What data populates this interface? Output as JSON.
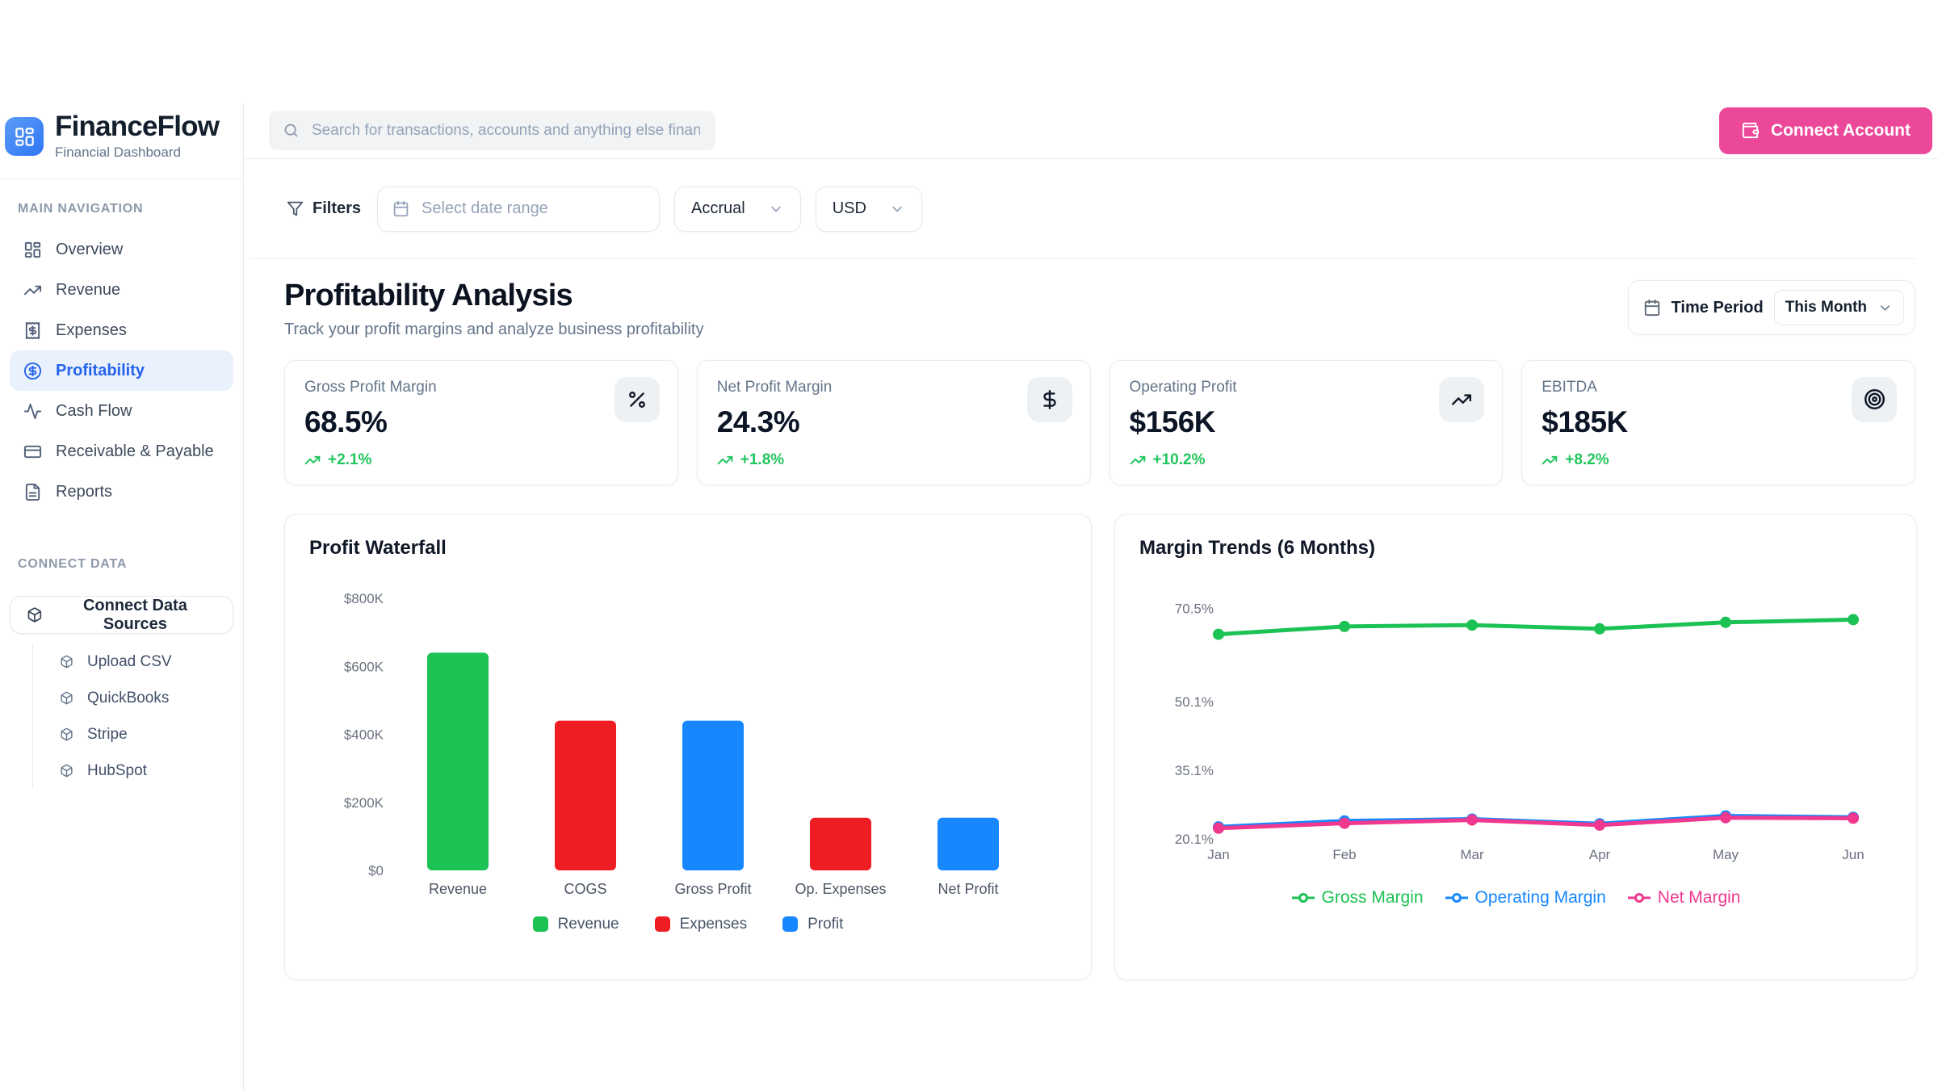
{
  "brand": {
    "name": "FinanceFlow",
    "tagline": "Financial Dashboard"
  },
  "sidebar": {
    "main_nav_label": "MAIN NAVIGATION",
    "items": [
      {
        "label": "Overview",
        "icon": "layout-dashboard-icon",
        "active": false
      },
      {
        "label": "Revenue",
        "icon": "trending-up-icon",
        "active": false
      },
      {
        "label": "Expenses",
        "icon": "receipt-icon",
        "active": false
      },
      {
        "label": "Profitability",
        "icon": "circle-dollar-icon",
        "active": true
      },
      {
        "label": "Cash Flow",
        "icon": "activity-icon",
        "active": false
      },
      {
        "label": "Receivable & Payable",
        "icon": "credit-card-icon",
        "active": false
      },
      {
        "label": "Reports",
        "icon": "file-text-icon",
        "active": false
      }
    ],
    "connect_label": "CONNECT DATA",
    "connect_button": "Connect Data Sources",
    "connect_items": [
      {
        "label": "Upload CSV",
        "icon": "cube-icon"
      },
      {
        "label": "QuickBooks",
        "icon": "cube-icon"
      },
      {
        "label": "Stripe",
        "icon": "cube-icon"
      },
      {
        "label": "HubSpot",
        "icon": "cube-icon"
      }
    ]
  },
  "header": {
    "search_placeholder": "Search for transactions, accounts and anything else financial",
    "connect_account_label": "Connect Account"
  },
  "filters": {
    "label": "Filters",
    "date_placeholder": "Select date range",
    "accounting_basis": "Accrual",
    "currency": "USD"
  },
  "section": {
    "title": "Profitability Analysis",
    "subtitle": "Track your profit margins and analyze business profitability",
    "time_period_label": "Time Period",
    "time_period_value": "This Month"
  },
  "kpis": [
    {
      "label": "Gross Profit Margin",
      "value": "68.5%",
      "delta": "+2.1%",
      "icon": "percent-icon"
    },
    {
      "label": "Net Profit Margin",
      "value": "24.3%",
      "delta": "+1.8%",
      "icon": "dollar-icon"
    },
    {
      "label": "Operating Profit",
      "value": "$156K",
      "delta": "+10.2%",
      "icon": "trending-up-icon"
    },
    {
      "label": "EBITDA",
      "value": "$185K",
      "delta": "+8.2%",
      "icon": "target-icon"
    }
  ],
  "colors": {
    "accent_pink": "#ec4899",
    "active_blue": "#2563eb",
    "positive_green": "#22c55e",
    "chart_green": "#1cc254",
    "chart_red": "#ee1d24",
    "chart_blue": "#1787ff",
    "chart_pink": "#f0388f"
  },
  "chart_data": [
    {
      "type": "bar",
      "title": "Profit Waterfall",
      "categories": [
        "Revenue",
        "COGS",
        "Gross Profit",
        "Op. Expenses",
        "Net Profit"
      ],
      "values": [
        640000,
        440000,
        440000,
        155000,
        155000
      ],
      "colors": [
        "#1cc254",
        "#ee1d24",
        "#1787ff",
        "#ee1d24",
        "#1787ff"
      ],
      "ytick_labels": [
        "$0",
        "$200K",
        "$400K",
        "$600K",
        "$800K"
      ],
      "ytick_values": [
        0,
        200000,
        400000,
        600000,
        800000
      ],
      "ylim": [
        0,
        800000
      ],
      "grid": false,
      "legend_position": "bottom",
      "legend": [
        {
          "label": "Revenue",
          "color": "#1cc254"
        },
        {
          "label": "Expenses",
          "color": "#ee1d24"
        },
        {
          "label": "Profit",
          "color": "#1787ff"
        }
      ]
    },
    {
      "type": "line",
      "title": "Margin Trends (6 Months)",
      "x": [
        "Jan",
        "Feb",
        "Mar",
        "Apr",
        "May",
        "Jun"
      ],
      "series": [
        {
          "name": "Gross Margin",
          "color": "#1cc254",
          "values": [
            65.0,
            66.7,
            67.0,
            66.2,
            67.6,
            68.2
          ]
        },
        {
          "name": "Operating Margin",
          "color": "#1787ff",
          "values": [
            22.9,
            24.2,
            24.6,
            23.6,
            25.3,
            25.0
          ]
        },
        {
          "name": "Net Margin",
          "color": "#f0388f",
          "values": [
            22.6,
            23.7,
            24.4,
            23.3,
            24.9,
            24.8
          ]
        }
      ],
      "ytick_labels": [
        "20.1%",
        "35.1%",
        "50.1%",
        "70.5%"
      ],
      "ytick_values": [
        20.1,
        35.1,
        50.1,
        70.5
      ],
      "ylim": [
        18.5,
        73
      ],
      "grid": false,
      "legend_position": "bottom"
    }
  ]
}
